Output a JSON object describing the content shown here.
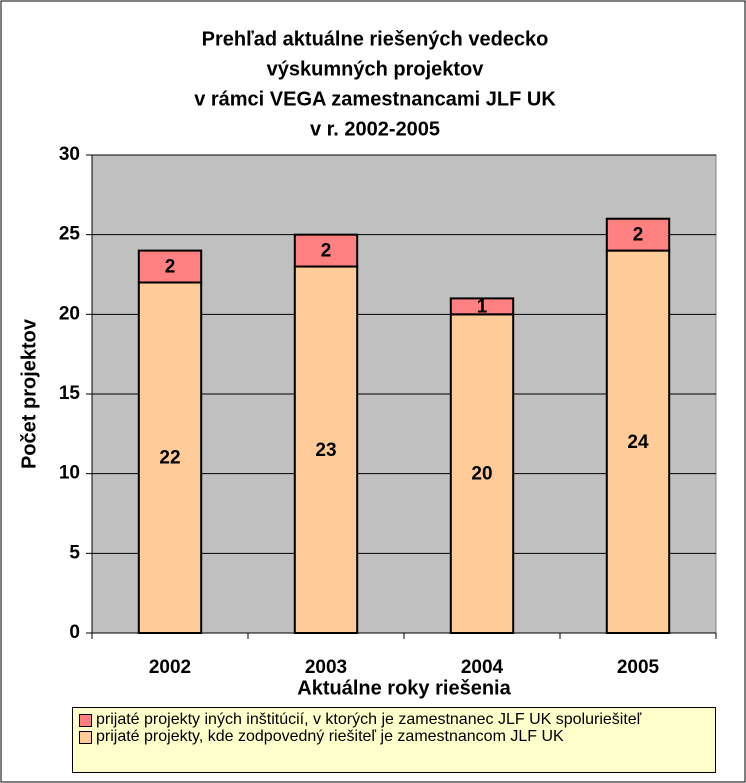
{
  "chart_data": {
    "type": "stacked_bar",
    "title": [
      "Prehľad aktuálne riešených vedecko",
      "výskumných projektov",
      "v rámci VEGA zamestnancami JLF UK",
      "v r. 2002-2005"
    ],
    "x_label": "Aktuálne roky riešenia",
    "y_label": "Počet projektov",
    "categories": [
      "2002",
      "2003",
      "2004",
      "2005"
    ],
    "series": [
      {
        "name": "prijaté projekty, kde zodpovedný riešiteľ je zamestnancom JLF UK",
        "color": "#ffcc99",
        "values": [
          22,
          23,
          20,
          24
        ]
      },
      {
        "name": "prijaté projekty iných inštitúcií, v ktorých je zamestnanec JLF UK spoluriešiteľ",
        "color": "#ff8080",
        "values": [
          2,
          2,
          1,
          2
        ]
      }
    ],
    "ylim": [
      0,
      30
    ],
    "yticks": [
      0,
      5,
      10,
      15,
      20,
      25,
      30
    ],
    "grid": true,
    "plot_background": "#c0c0c0",
    "legend_position": "bottom"
  }
}
